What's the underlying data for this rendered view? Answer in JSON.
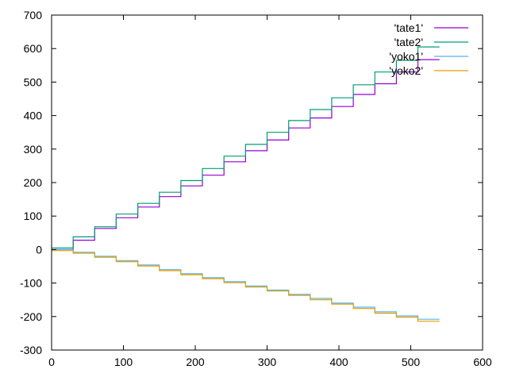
{
  "chart_data": {
    "type": "line",
    "title": "",
    "xlabel": "",
    "ylabel": "",
    "xlim": [
      0,
      600
    ],
    "ylim": [
      -300,
      700
    ],
    "xticks": [
      0,
      100,
      200,
      300,
      400,
      500,
      600
    ],
    "yticks": [
      -300,
      -200,
      -100,
      0,
      100,
      200,
      300,
      400,
      500,
      600,
      700
    ],
    "grid": false,
    "legend_position": "top-right",
    "series": [
      {
        "name": "'tate1'",
        "color": "#9400d3",
        "x": [
          0,
          30,
          30,
          60,
          60,
          90,
          90,
          120,
          120,
          150,
          150,
          180,
          180,
          210,
          210,
          240,
          240,
          270,
          270,
          300,
          300,
          330,
          330,
          360,
          360,
          390,
          390,
          420,
          420,
          450,
          450,
          480,
          480,
          510,
          510,
          540
        ],
        "y": [
          0,
          0,
          28,
          28,
          63,
          63,
          95,
          95,
          127,
          127,
          158,
          158,
          190,
          190,
          222,
          222,
          262,
          262,
          295,
          295,
          327,
          327,
          363,
          363,
          393,
          393,
          427,
          427,
          463,
          463,
          495,
          495,
          530,
          530,
          567,
          567
        ]
      },
      {
        "name": "'tate2'",
        "color": "#009e73",
        "x": [
          0,
          30,
          30,
          60,
          60,
          90,
          90,
          120,
          120,
          150,
          150,
          180,
          180,
          210,
          210,
          240,
          240,
          270,
          270,
          300,
          300,
          330,
          330,
          360,
          360,
          390,
          390,
          420,
          420,
          450,
          450,
          480,
          480,
          510,
          510,
          540
        ],
        "y": [
          5,
          5,
          38,
          38,
          68,
          68,
          106,
          106,
          138,
          138,
          171,
          171,
          206,
          206,
          242,
          242,
          279,
          279,
          314,
          314,
          350,
          350,
          385,
          385,
          418,
          418,
          453,
          453,
          492,
          492,
          530,
          530,
          565,
          565,
          605,
          605
        ]
      },
      {
        "name": "'yoko1'",
        "color": "#56b4e9",
        "x": [
          0,
          30,
          30,
          60,
          60,
          90,
          90,
          120,
          120,
          150,
          150,
          180,
          180,
          210,
          210,
          240,
          240,
          270,
          270,
          300,
          300,
          330,
          330,
          360,
          360,
          390,
          390,
          420,
          420,
          450,
          450,
          480,
          480,
          510,
          510,
          540
        ],
        "y": [
          0,
          0,
          -8,
          -8,
          -20,
          -20,
          -33,
          -33,
          -46,
          -46,
          -60,
          -60,
          -72,
          -72,
          -84,
          -84,
          -96,
          -96,
          -109,
          -109,
          -121,
          -121,
          -134,
          -134,
          -146,
          -146,
          -160,
          -160,
          -172,
          -172,
          -186,
          -186,
          -198,
          -198,
          -208,
          -208
        ]
      },
      {
        "name": "'yoko2'",
        "color": "#e69f00",
        "x": [
          0,
          30,
          30,
          60,
          60,
          90,
          90,
          120,
          120,
          150,
          150,
          180,
          180,
          210,
          210,
          240,
          240,
          270,
          270,
          300,
          300,
          330,
          330,
          360,
          360,
          390,
          390,
          420,
          420,
          450,
          450,
          480,
          480,
          510,
          510,
          540
        ],
        "y": [
          -3,
          -3,
          -11,
          -11,
          -23,
          -23,
          -36,
          -36,
          -49,
          -49,
          -63,
          -63,
          -75,
          -75,
          -87,
          -87,
          -99,
          -99,
          -112,
          -112,
          -124,
          -124,
          -137,
          -137,
          -150,
          -150,
          -163,
          -163,
          -176,
          -176,
          -190,
          -190,
          -202,
          -202,
          -214,
          -214
        ]
      }
    ]
  }
}
